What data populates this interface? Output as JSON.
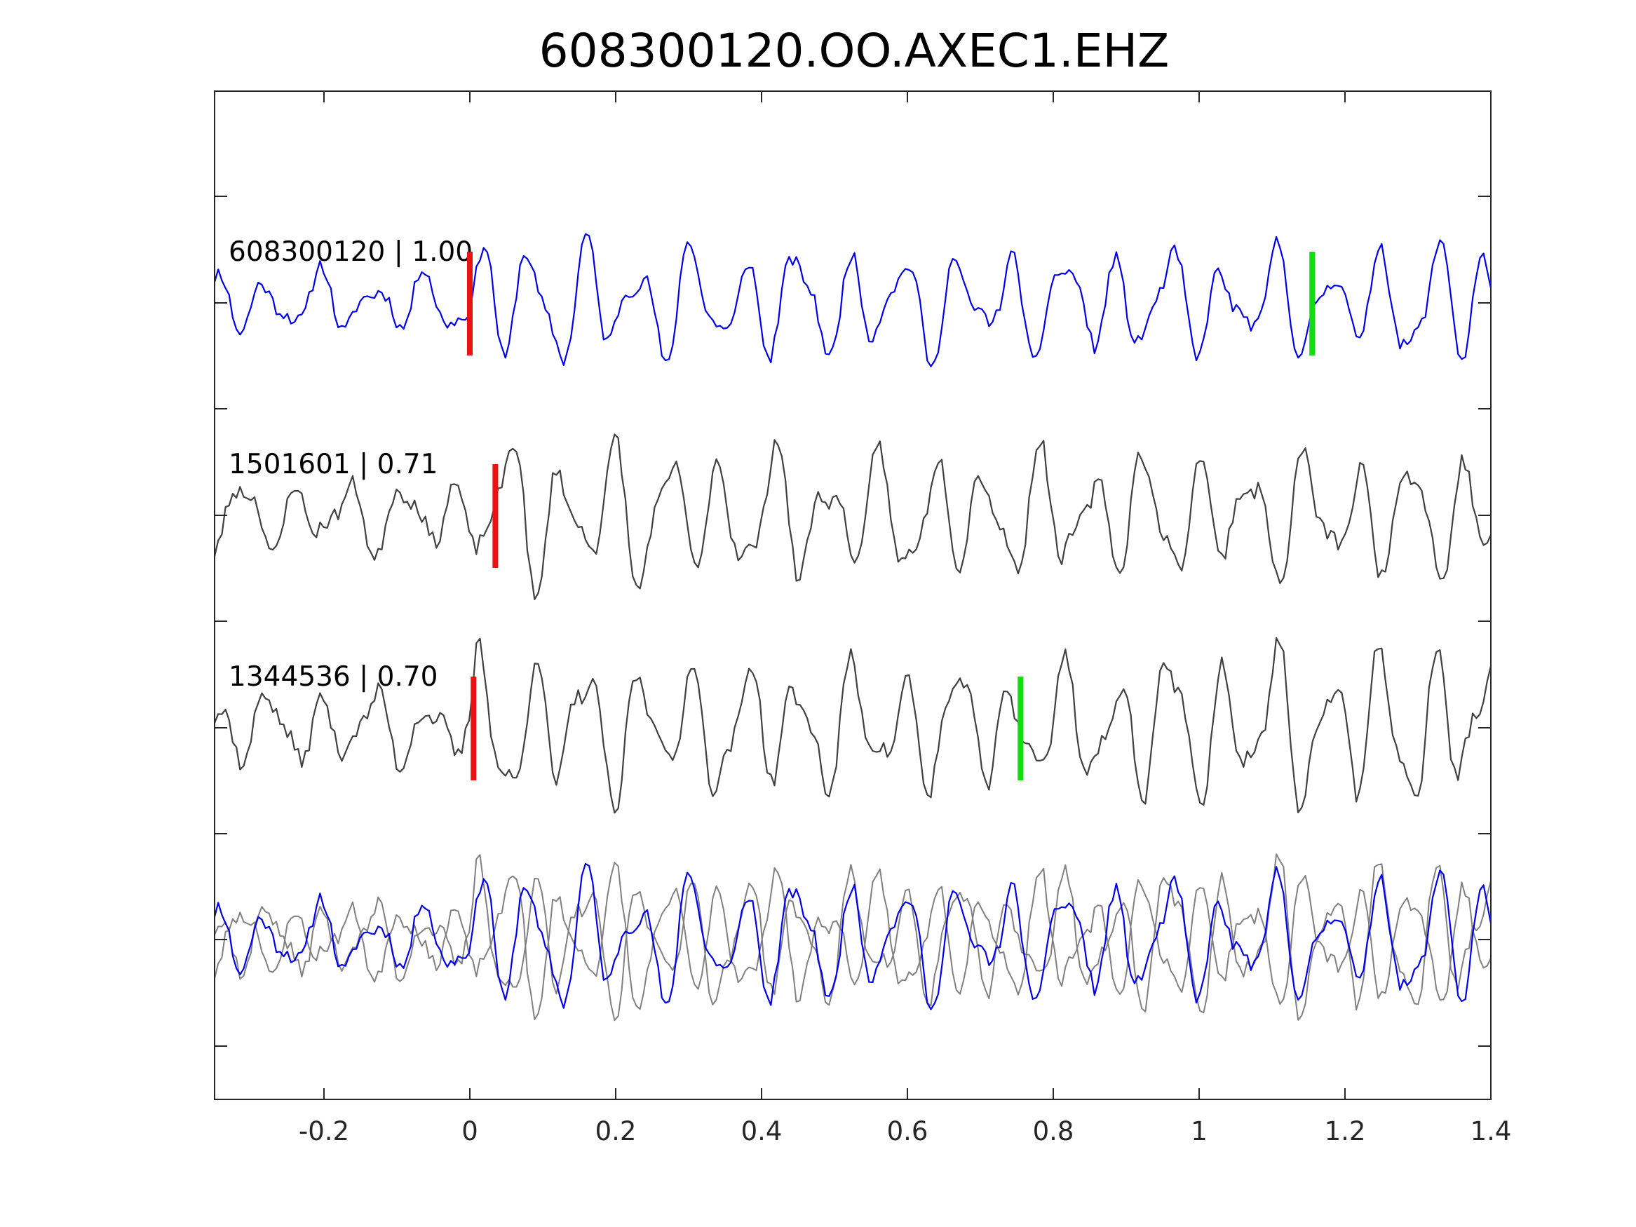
{
  "chart_data": {
    "type": "line",
    "title": "608300120.OO.AXEC1.EHZ",
    "xlabel": "",
    "ylabel": "",
    "xlim": [
      -0.35,
      1.4
    ],
    "x_ticks": [
      "-0.2",
      "0",
      "0.2",
      "0.4",
      "0.6",
      "0.8",
      "1",
      "1.2",
      "1.4"
    ],
    "x_tick_values": [
      -0.2,
      0,
      0.2,
      0.4,
      0.6,
      0.8,
      1,
      1.2,
      1.4
    ],
    "grid": false,
    "colors": {
      "template": "#0000ee",
      "match": "#404040",
      "overlay_match": "#808080",
      "p_pick": "#ee1111",
      "s_pick": "#11dd11",
      "axes": "#262626"
    },
    "traces": [
      {
        "label": "608300120 | 1.00",
        "id": "608300120",
        "correlation": 1.0,
        "color": "template",
        "seed": 11,
        "p_pick": 0.0,
        "s_pick": 1.155
      },
      {
        "label": "1501601 | 0.71",
        "id": "1501601",
        "correlation": 0.71,
        "color": "match",
        "seed": 23,
        "p_pick": 0.035,
        "s_pick": null
      },
      {
        "label": "1344536 | 0.70",
        "id": "1344536",
        "correlation": 0.7,
        "color": "match",
        "seed": 37,
        "p_pick": 0.005,
        "s_pick": 0.755
      }
    ],
    "overlay": {
      "description_visible": false,
      "traces": [
        "1501601",
        "1344536",
        "608300120"
      ]
    }
  }
}
